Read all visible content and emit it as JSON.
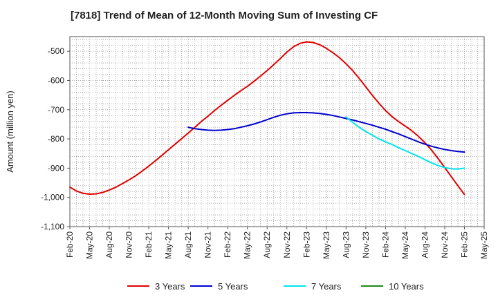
{
  "chart_data": {
    "type": "line",
    "title": "[7818]  Trend of Mean of 12-Month Moving Sum of Investing CF",
    "xlabel": "",
    "ylabel": "Amount (million yen)",
    "ylim": [
      -1100,
      -450
    ],
    "yticks": [
      -500,
      -600,
      -700,
      -800,
      -900,
      -1000,
      -1100
    ],
    "ytick_labels": [
      "-500",
      "-600",
      "-700",
      "-800",
      "-900",
      "-1,000",
      "-1,100"
    ],
    "x_tick_labels": [
      "Feb-20",
      "May-20",
      "Aug-20",
      "Nov-20",
      "Feb-21",
      "May-21",
      "Aug-21",
      "Nov-21",
      "Feb-22",
      "May-22",
      "Aug-22",
      "Nov-22",
      "Feb-23",
      "May-23",
      "Aug-23",
      "Nov-23",
      "Feb-24",
      "May-24",
      "Aug-24",
      "Nov-24",
      "Feb-25",
      "May-25"
    ],
    "grid": true,
    "legend_position": "bottom",
    "series": [
      {
        "name": "3 Years",
        "color": "#e00000",
        "x": [
          0,
          1,
          2,
          3,
          4,
          5,
          6,
          7,
          8,
          9,
          10,
          11,
          12,
          13,
          14,
          15,
          16,
          17,
          18,
          19,
          20,
          21,
          22,
          23,
          24,
          25,
          26,
          27,
          28,
          29,
          30,
          31,
          32,
          33,
          34,
          35,
          36,
          37,
          38,
          39,
          40,
          41,
          42,
          43,
          44,
          45,
          46,
          47,
          48,
          49,
          50,
          51,
          52,
          53,
          54,
          55,
          56,
          57,
          58,
          59,
          60
        ],
        "values": [
          -965,
          -978,
          -986,
          -989,
          -988,
          -983,
          -975,
          -965,
          -953,
          -940,
          -926,
          -910,
          -893,
          -875,
          -856,
          -837,
          -818,
          -799,
          -780,
          -760,
          -740,
          -722,
          -703,
          -685,
          -668,
          -651,
          -635,
          -620,
          -603,
          -585,
          -566,
          -546,
          -525,
          -503,
          -485,
          -473,
          -468,
          -470,
          -478,
          -490,
          -505,
          -522,
          -543,
          -566,
          -593,
          -622,
          -651,
          -678,
          -703,
          -724,
          -741,
          -756,
          -772,
          -791,
          -813,
          -838,
          -867,
          -898,
          -929,
          -960,
          -990
        ]
      },
      {
        "name": "5 Years",
        "color": "#0000cc",
        "x": [
          18,
          19,
          20,
          21,
          22,
          23,
          24,
          25,
          26,
          27,
          28,
          29,
          30,
          31,
          32,
          33,
          34,
          35,
          36,
          37,
          38,
          39,
          40,
          41,
          42,
          43,
          44,
          45,
          46,
          47,
          48,
          49,
          50,
          51,
          52,
          53,
          54,
          55,
          56,
          57,
          58,
          59,
          60
        ],
        "values": [
          -760,
          -765,
          -768,
          -770,
          -771,
          -770,
          -768,
          -765,
          -760,
          -755,
          -749,
          -742,
          -734,
          -726,
          -719,
          -714,
          -711,
          -710,
          -710,
          -711,
          -713,
          -716,
          -720,
          -725,
          -730,
          -735,
          -741,
          -747,
          -753,
          -760,
          -767,
          -775,
          -783,
          -792,
          -801,
          -810,
          -818,
          -825,
          -831,
          -836,
          -840,
          -843,
          -845
        ]
      },
      {
        "name": "7 Years",
        "color": "#00e5ee",
        "x": [
          42,
          43,
          44,
          45,
          46,
          47,
          48,
          49,
          50,
          51,
          52,
          53,
          54,
          55,
          56,
          57,
          58,
          59,
          60
        ],
        "values": [
          -725,
          -743,
          -760,
          -775,
          -787,
          -800,
          -810,
          -819,
          -830,
          -840,
          -850,
          -860,
          -871,
          -882,
          -891,
          -898,
          -902,
          -903,
          -900
        ]
      },
      {
        "name": "10 Years",
        "color": "#1a8a1a",
        "x": [],
        "values": []
      }
    ]
  }
}
